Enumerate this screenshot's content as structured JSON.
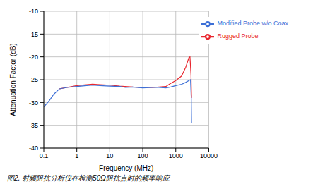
{
  "chart_data": {
    "type": "line",
    "caption": "图2. 射频阻抗分析仪在检测50Ω阻抗点时的频率响应",
    "x_label": "Frequency (MHz)",
    "y_label": "Attenuation Factor (dB)",
    "log": "x",
    "grid": true,
    "legend": "upper right",
    "xlim": [
      0.1,
      10000
    ],
    "xticks": [
      0.1,
      1,
      10,
      100,
      1000,
      10000
    ],
    "ylim": [
      -40,
      -10
    ],
    "yticks": [
      -40,
      -35,
      -30,
      -25,
      -20,
      -15,
      -10
    ],
    "series": [
      {
        "name": "Rugged Probe",
        "color": "#e8262e",
        "x": [
          0.3,
          0.5,
          1,
          2,
          3,
          5,
          10,
          20,
          50,
          100,
          200,
          500,
          700,
          1000,
          1500,
          2000,
          2500,
          2700,
          2900,
          3000
        ],
        "values": [
          -27,
          -26.7,
          -26.3,
          -26.1,
          -26,
          -26.1,
          -26.2,
          -26.4,
          -26.6,
          -26.7,
          -26.7,
          -26.5,
          -25.8,
          -25.2,
          -24.2,
          -22.3,
          -20.2,
          -20,
          -24,
          -29
        ]
      },
      {
        "name": "Modified Probe w/o Coax",
        "color": "#3d6fd6",
        "x": [
          0.1,
          0.15,
          0.2,
          0.3,
          0.5,
          1,
          2,
          3,
          5,
          10,
          20,
          30,
          50,
          100,
          200,
          300,
          500,
          700,
          1000,
          1500,
          2000,
          2500,
          2800,
          2950,
          3000
        ],
        "values": [
          -31,
          -29.5,
          -28.2,
          -27,
          -26.7,
          -26.5,
          -26.3,
          -26.2,
          -26.3,
          -26.4,
          -26.5,
          -26.7,
          -26.6,
          -26.8,
          -26.7,
          -26.7,
          -26.8,
          -26.6,
          -26.3,
          -26,
          -25.6,
          -25.2,
          -25,
          -29,
          -34.5
        ]
      }
    ]
  }
}
